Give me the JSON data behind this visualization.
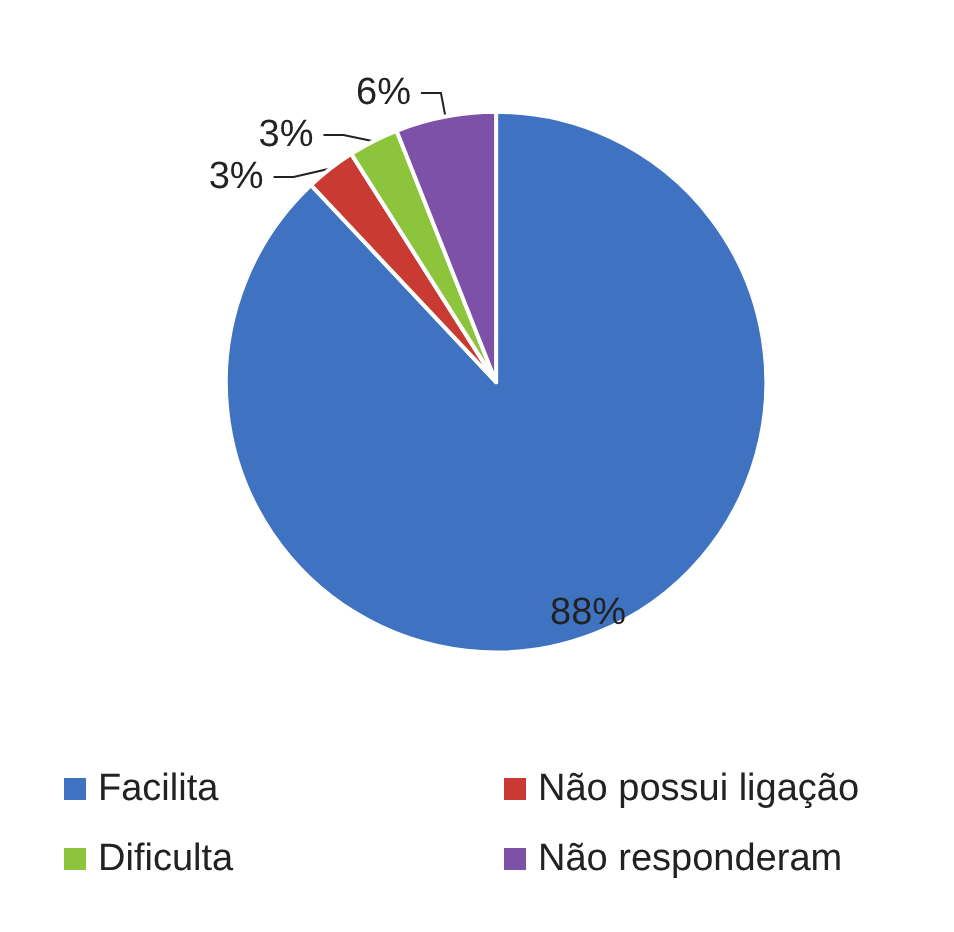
{
  "chart_data": {
    "type": "pie",
    "categories": [
      "Facilita",
      "Não possui ligação",
      "Dificulta",
      "Não responderam"
    ],
    "values": [
      88,
      3,
      3,
      6
    ],
    "colors": [
      "#3f73c2",
      "#c83a32",
      "#8cc43c",
      "#7d51a8"
    ],
    "value_labels": [
      "88%",
      "3%",
      "3%",
      "6%"
    ],
    "legend": "bottom"
  }
}
